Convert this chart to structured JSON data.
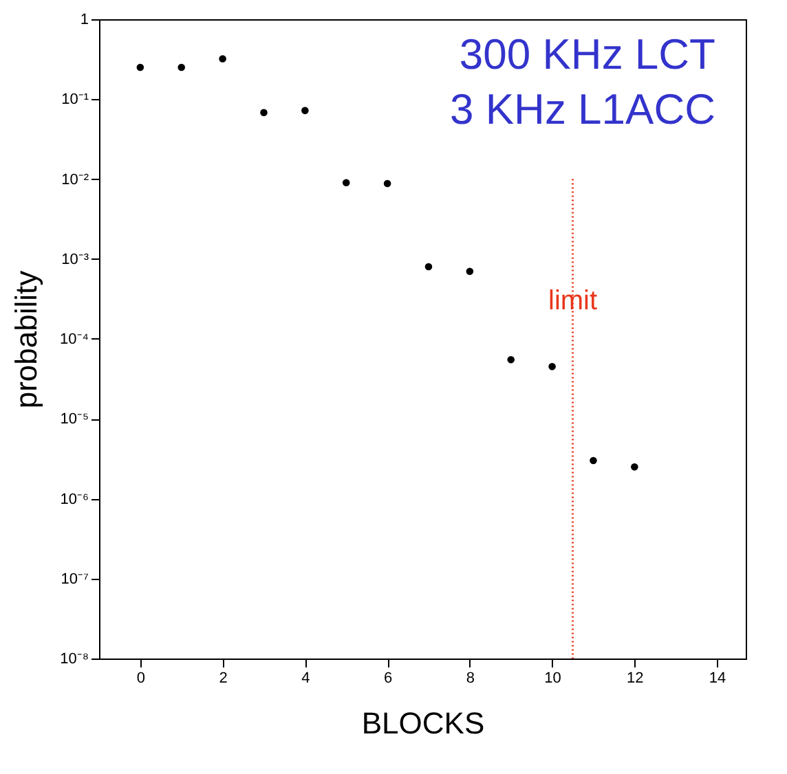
{
  "chart_data": {
    "type": "scatter",
    "xlabel": "BLOCKS",
    "ylabel": "probability",
    "x": [
      0,
      1,
      2,
      3,
      4,
      5,
      6,
      7,
      8,
      9,
      10,
      11,
      12
    ],
    "series": [
      {
        "color": "#000000",
        "values": [
          0.25,
          0.25,
          0.32,
          0.068,
          0.072,
          0.009,
          0.0088,
          0.0008,
          0.0007,
          5.5e-05,
          4.5e-05,
          3e-06,
          2.5e-06
        ]
      }
    ],
    "log": "y",
    "marker": "circle",
    "grid": false,
    "xlim": [
      -1,
      14.7
    ],
    "xticks": [
      0,
      2,
      4,
      6,
      8,
      10,
      12,
      14
    ],
    "ylim": [
      1e-08,
      1
    ],
    "yticks": [
      {
        "value": 1e-08,
        "label": "10⁻⁸"
      },
      {
        "value": 1e-07,
        "label": "10⁻⁷"
      },
      {
        "value": 1e-06,
        "label": "10⁻⁶"
      },
      {
        "value": 1e-05,
        "label": "10⁻⁵"
      },
      {
        "value": 0.0001,
        "label": "10⁻⁴"
      },
      {
        "value": 0.001,
        "label": "10⁻³"
      },
      {
        "value": 0.01,
        "label": "10⁻²"
      },
      {
        "value": 0.1,
        "label": "10⁻¹"
      },
      {
        "value": 1,
        "label": "1"
      }
    ],
    "ref_lines": [
      {
        "axis": "x",
        "value": 10.5,
        "label": "limit",
        "color": "#e8371c",
        "line_style": "dotted"
      }
    ],
    "annotations": [
      "300 KHz LCT",
      "3 KHz L1ACC"
    ]
  }
}
